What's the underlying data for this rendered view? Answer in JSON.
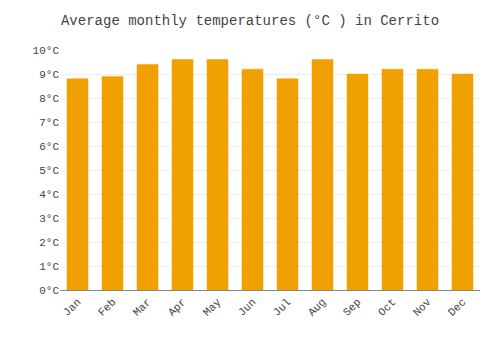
{
  "chart_data": {
    "type": "bar",
    "title": "Average monthly temperatures (°C ) in Cerrito",
    "categories": [
      "Jan",
      "Feb",
      "Mar",
      "Apr",
      "May",
      "Jun",
      "Jul",
      "Aug",
      "Sep",
      "Oct",
      "Nov",
      "Dec"
    ],
    "values": [
      8.8,
      8.9,
      9.4,
      9.6,
      9.6,
      9.2,
      8.8,
      9.6,
      9.0,
      9.2,
      9.2,
      9.0
    ],
    "color": "#F0A000",
    "ylim": [
      0,
      10
    ],
    "yticks": [
      {
        "value": 0,
        "label": "0°C"
      },
      {
        "value": 1,
        "label": "1°C"
      },
      {
        "value": 2,
        "label": "2°C"
      },
      {
        "value": 3,
        "label": "3°C"
      },
      {
        "value": 4,
        "label": "4°C"
      },
      {
        "value": 5,
        "label": "5°C"
      },
      {
        "value": 6,
        "label": "6°C"
      },
      {
        "value": 7,
        "label": "7°C"
      },
      {
        "value": 8,
        "label": "8°C"
      },
      {
        "value": 9,
        "label": "9°C"
      },
      {
        "value": 10,
        "label": "10°C"
      }
    ],
    "grid": true
  }
}
